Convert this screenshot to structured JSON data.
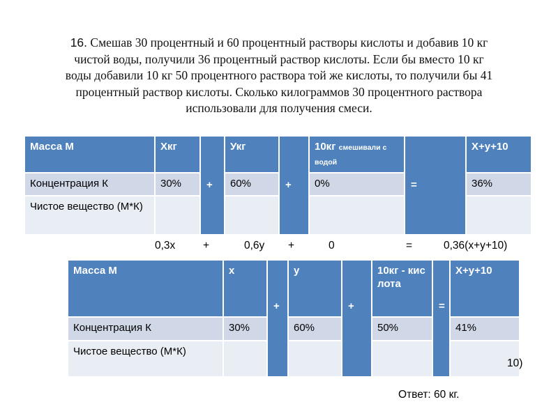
{
  "problem": {
    "number": "16.",
    "lines": [
      "Смешав 30 процентный и 60 процентный растворы кислоты и добавив 10 кг",
      "чистой воды, получили 36 процентный раствор кислоты. Если бы вместо 10 кг",
      "воды добавили 10 кг 50 процентного раствора той же кислоты, то получили бы 41",
      "процентный раствор кислоты. Сколько килограммов 30 процентного раствора",
      "использовали для получения смеси."
    ]
  },
  "table1": {
    "rows": [
      [
        "Масса  М",
        "Хкг",
        "Укг",
        {
          "text": "10кг",
          "note": "смешивали с водой"
        },
        "Х+у+10"
      ],
      [
        "Концентрация  К",
        "30%",
        "60%",
        "0%",
        "36%"
      ],
      [
        "Чистое вещество (М*К)"
      ]
    ],
    "operators": [
      "+",
      "+",
      "="
    ]
  },
  "equation": [
    "0,3х",
    "+",
    "0,6у",
    "+",
    "0",
    "=",
    "0,36(х+у+10)"
  ],
  "table2": {
    "rows": [
      [
        "Масса  М",
        "х",
        "у",
        "10кг - кислота",
        "Х+у+10"
      ],
      [
        "Концентрация  К",
        "30%",
        "60%",
        "50%",
        "41%"
      ],
      [
        "Чистое вещество (М*К)"
      ]
    ],
    "operators": [
      "+",
      "+",
      "="
    ]
  },
  "fragment": "10)",
  "answer": "Ответ: 60 кг."
}
